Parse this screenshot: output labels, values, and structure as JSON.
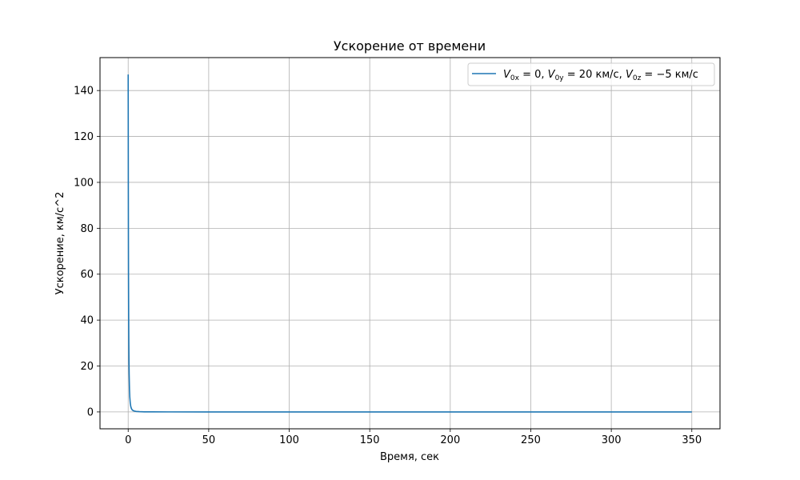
{
  "chart_data": {
    "type": "line",
    "title": "Ускорение от времени",
    "xlabel": "Время, сек",
    "ylabel": "Ускорение, км/с^2",
    "xlim": [
      -17.5,
      367.5
    ],
    "ylim": [
      -7.35,
      154.35
    ],
    "xticks": [
      0,
      50,
      100,
      150,
      200,
      250,
      300,
      350
    ],
    "yticks": [
      0,
      20,
      40,
      60,
      80,
      100,
      120,
      140
    ],
    "grid": true,
    "legend_position": "upper right",
    "series": [
      {
        "name": "V_{0x} = 0, V_{0y} = 20 км/с, V_{0z} = −5 км/с",
        "legend": {
          "v0x_main": "V",
          "v0x_sub": "0x",
          "v0x_rest": " = 0, ",
          "v0y_main": "V",
          "v0y_sub": "0y",
          "v0y_rest": " = 20 км/с, ",
          "v0z_main": "V",
          "v0z_sub": "0z",
          "v0z_rest": " = −5 км/с"
        },
        "color": "#1f77b4",
        "points": [
          [
            0,
            147
          ],
          [
            0.05,
            120
          ],
          [
            0.1,
            95
          ],
          [
            0.15,
            75
          ],
          [
            0.2,
            60
          ],
          [
            0.3,
            42
          ],
          [
            0.4,
            30
          ],
          [
            0.5,
            22
          ],
          [
            0.6,
            16.5
          ],
          [
            0.8,
            10
          ],
          [
            1.0,
            6.5
          ],
          [
            1.3,
            3.8
          ],
          [
            1.6,
            2.4
          ],
          [
            2.0,
            1.5
          ],
          [
            2.5,
            0.9
          ],
          [
            3.0,
            0.6
          ],
          [
            4.0,
            0.35
          ],
          [
            5.0,
            0.22
          ],
          [
            7.0,
            0.11
          ],
          [
            10.0,
            0.05
          ],
          [
            15.0,
            0.02
          ],
          [
            25.0,
            0.01
          ],
          [
            50.0,
            0.003
          ],
          [
            100.0,
            0.001
          ],
          [
            200.0,
            0.0003
          ],
          [
            350.0,
            0.0001
          ]
        ]
      }
    ]
  }
}
